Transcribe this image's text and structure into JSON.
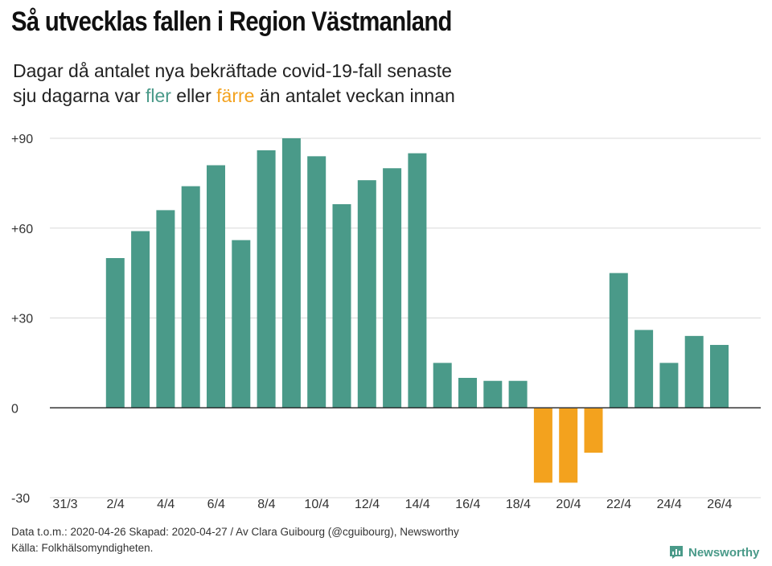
{
  "header": {
    "title": "Så utvecklas fallen i Region Västmanland",
    "subtitle_line1": "Dagar då antalet nya bekräftade covid-19-fall senaste",
    "subtitle_line2_pre": "sju dagarna var ",
    "subtitle_more": "fler",
    "subtitle_mid": " eller ",
    "subtitle_fewer": "färre",
    "subtitle_post": " än antalet veckan innan"
  },
  "footer": {
    "line1": "Data t.o.m.: 2020-04-26 Skapad: 2020-04-27 / Av Clara Guibourg (@cguibourg), Newsworthy",
    "line2": "Källa: Folkhälsomyndigheten."
  },
  "brand": {
    "name": "Newsworthy",
    "icon": "newsworthy-logo-icon"
  },
  "colors": {
    "more": "#4a9a89",
    "fewer": "#f3a21e",
    "grid": "#d9d9d9",
    "zero": "#333333"
  },
  "chart_data": {
    "type": "bar",
    "title": "Så utvecklas fallen i Region Västmanland",
    "xlabel": "",
    "ylabel": "",
    "ylim": [
      -30,
      90
    ],
    "yticks": [
      -30,
      0,
      30,
      60,
      90
    ],
    "ytick_labels": [
      "-30",
      "0",
      "+30",
      "+60",
      "+90"
    ],
    "grid": true,
    "categories": [
      "31/3",
      "1/4",
      "2/4",
      "3/4",
      "4/4",
      "5/4",
      "6/4",
      "7/4",
      "8/4",
      "9/4",
      "10/4",
      "11/4",
      "12/4",
      "13/4",
      "14/4",
      "15/4",
      "16/4",
      "17/4",
      "18/4",
      "19/4",
      "20/4",
      "21/4",
      "22/4",
      "23/4",
      "24/4",
      "25/4",
      "26/4"
    ],
    "xtick_labels": [
      "31/3",
      "2/4",
      "4/4",
      "6/4",
      "8/4",
      "10/4",
      "12/4",
      "14/4",
      "16/4",
      "18/4",
      "20/4",
      "22/4",
      "24/4",
      "26/4"
    ],
    "values": [
      null,
      50,
      59,
      66,
      74,
      81,
      56,
      86,
      90,
      84,
      68,
      76,
      80,
      85,
      15,
      10,
      9,
      9,
      -25,
      -25,
      -15,
      45,
      26,
      15,
      24,
      21,
      null
    ]
  }
}
